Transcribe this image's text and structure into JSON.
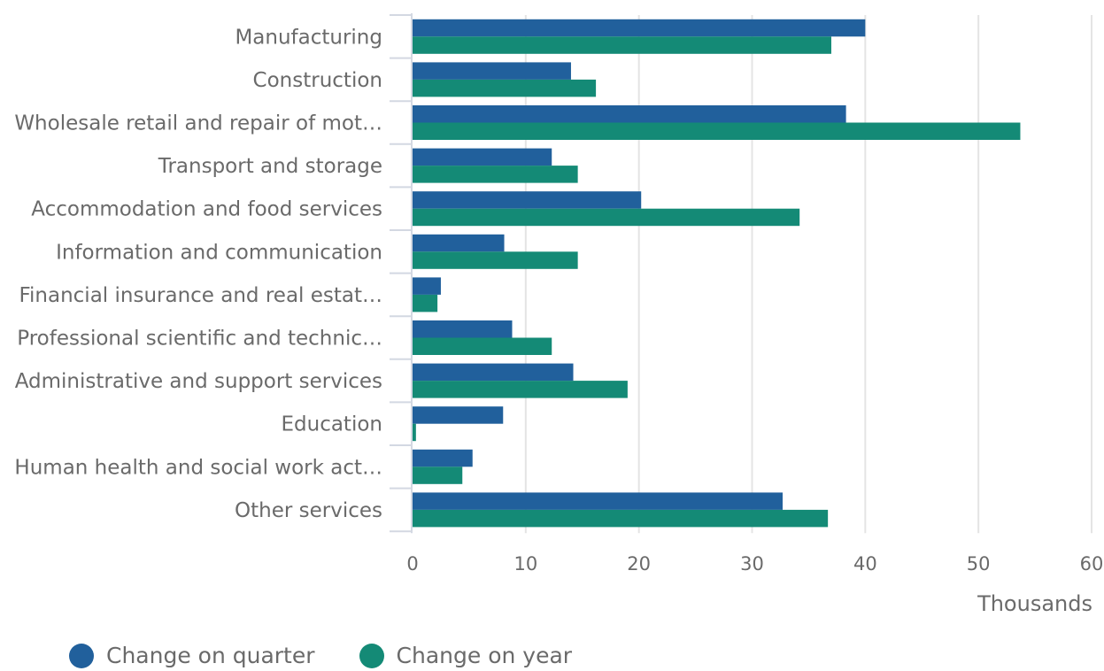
{
  "chart_data": {
    "type": "bar",
    "orientation": "horizontal",
    "categories": [
      "Manufacturing",
      "Construction",
      "Wholesale retail and repair of mot…",
      "Transport and storage",
      "Accommodation and food services",
      "Information and communication",
      "Financial insurance and real estat…",
      "Professional scientific and technic…",
      "Administrative and support services",
      "Education",
      "Human health and social work act…",
      "Other services"
    ],
    "series": [
      {
        "name": "Change on quarter",
        "color": "#21609c",
        "values": [
          40.0,
          14.0,
          38.3,
          12.3,
          20.2,
          8.1,
          2.5,
          8.8,
          14.2,
          8.0,
          5.3,
          32.7
        ]
      },
      {
        "name": "Change on year",
        "color": "#148a76",
        "values": [
          37.0,
          16.2,
          53.7,
          14.6,
          34.2,
          14.6,
          2.2,
          12.3,
          19.0,
          0.3,
          4.4,
          36.7
        ]
      }
    ],
    "xlim": [
      0,
      60
    ],
    "xticks": [
      0,
      10,
      20,
      30,
      40,
      50,
      60
    ],
    "xlabel": "Thousands",
    "grid": true,
    "legend_position": "bottom-left"
  }
}
